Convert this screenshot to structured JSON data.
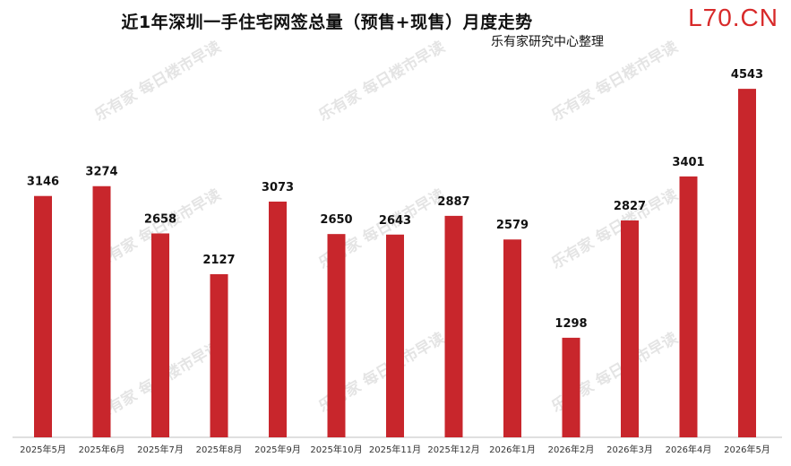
{
  "brand": "L70.CN",
  "watermark_text": "乐有家 每日楼市早读",
  "colors": {
    "bar": "#c8262c",
    "brand": "#d82a2a"
  },
  "chart_data": {
    "type": "bar",
    "title": "近1年深圳一手住宅网签总量（预售+现售）月度走势",
    "subtitle": "乐有家研究中心整理",
    "xlabel": "",
    "ylabel": "",
    "grid": false,
    "legend": "none",
    "ylim": [
      0,
      5000
    ],
    "categories": [
      "2025年5月",
      "2025年6月",
      "2025年7月",
      "2025年8月",
      "2025年9月",
      "2025年10月",
      "2025年11月",
      "2025年12月",
      "2026年1月",
      "2026年2月",
      "2026年3月",
      "2026年4月",
      "2026年5月"
    ],
    "values": [
      3146,
      3274,
      2658,
      2127,
      3073,
      2650,
      2643,
      2887,
      2579,
      1298,
      2827,
      3401,
      4543
    ]
  }
}
